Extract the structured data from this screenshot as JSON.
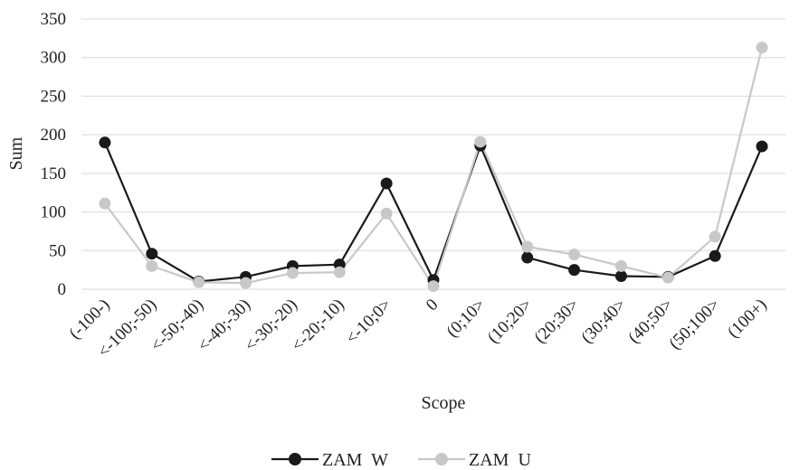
{
  "chart_data": {
    "type": "line",
    "title": "",
    "xlabel": "Scope",
    "ylabel": "Sum",
    "ylim": [
      0,
      350
    ],
    "yticks": [
      0,
      50,
      100,
      150,
      200,
      250,
      300,
      350
    ],
    "grid": "horizontal",
    "legend_position": "bottom",
    "categories": [
      "(-100-)",
      "<-100;-50)",
      "<-50;-40)",
      "<-40;-30)",
      "<-30;-20)",
      "<-20;-10)",
      "<-10;0>",
      "0",
      "(0;10>",
      "(10;20>",
      "(20;30>",
      "(30;40>",
      "(40;50>",
      "(50;100>",
      "(100+)"
    ],
    "series": [
      {
        "name": "ZAM  W",
        "color": "#1a1a1a",
        "values": [
          190,
          46,
          10,
          16,
          30,
          32,
          137,
          12,
          186,
          41,
          25,
          17,
          16,
          43,
          185
        ]
      },
      {
        "name": "ZAM  U",
        "color": "#c8c8c8",
        "values": [
          111,
          30,
          9,
          8,
          21,
          22,
          98,
          4,
          191,
          55,
          45,
          30,
          15,
          68,
          313
        ]
      }
    ]
  }
}
